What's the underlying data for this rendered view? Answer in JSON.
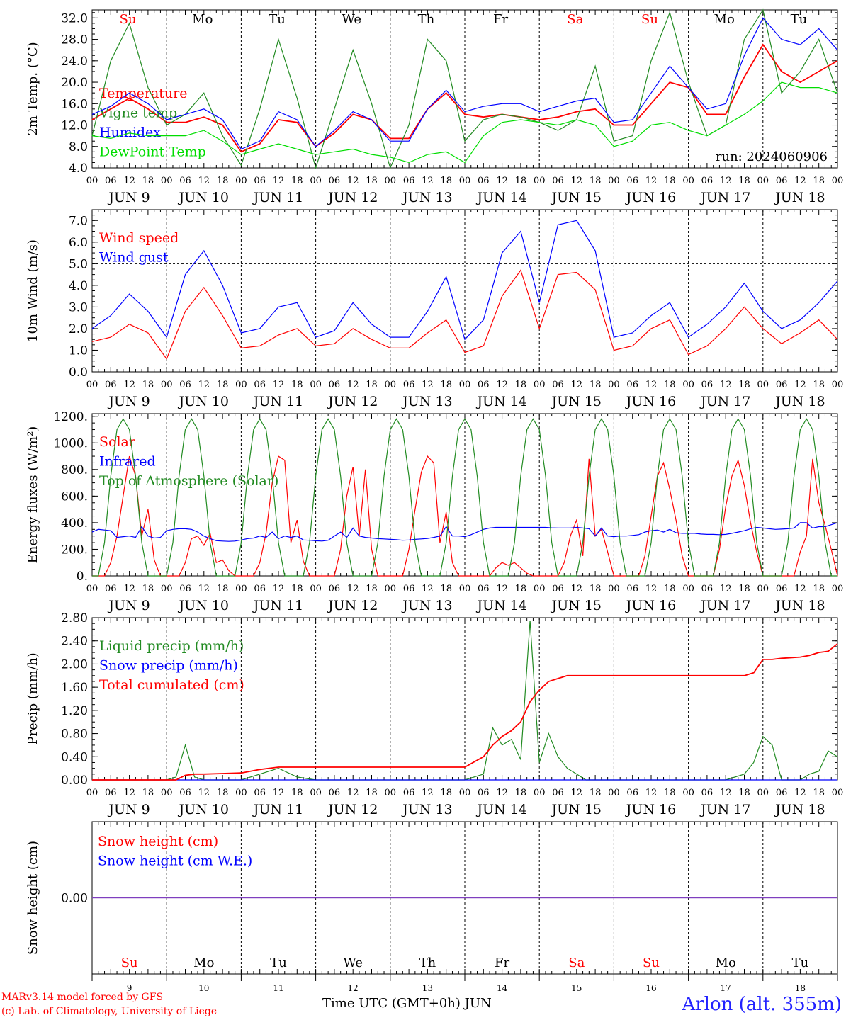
{
  "run_label": "run: 2024060906",
  "month_label": "JUN",
  "days": [
    "9",
    "10",
    "11",
    "12",
    "13",
    "14",
    "15",
    "16",
    "17",
    "18"
  ],
  "weekdays": [
    {
      "label": "Su",
      "color": "#ff0000"
    },
    {
      "label": "Mo",
      "color": "#000000"
    },
    {
      "label": "Tu",
      "color": "#000000"
    },
    {
      "label": "We",
      "color": "#000000"
    },
    {
      "label": "Th",
      "color": "#000000"
    },
    {
      "label": "Fr",
      "color": "#000000"
    },
    {
      "label": "Sa",
      "color": "#ff0000"
    },
    {
      "label": "Su",
      "color": "#ff0000"
    },
    {
      "label": "Mo",
      "color": "#000000"
    },
    {
      "label": "Tu",
      "color": "#000000"
    }
  ],
  "hour_ticks": [
    "00",
    "06",
    "12",
    "18"
  ],
  "footer": {
    "credit_line1": "MARv3.14 model forced by GFS",
    "credit_line2": "(c) Lab. of Climatology, University of Liege",
    "x_title": "Time UTC (GMT+0h)",
    "station": "Arlon (alt. 355m)"
  },
  "chart_data": [
    {
      "type": "line",
      "ylabel": "2m Temp. (°C)",
      "ylim": [
        4,
        33.5
      ],
      "yticks": [
        "4.0",
        "8.0",
        "12.0",
        "16.0",
        "20.0",
        "24.0",
        "28.0",
        "32.0"
      ],
      "x_unit": "hours since JUN 9 00 UTC",
      "x": [
        0,
        6,
        12,
        18,
        24,
        30,
        36,
        42,
        48,
        54,
        60,
        66,
        72,
        78,
        84,
        90,
        96,
        102,
        108,
        114,
        120,
        126,
        132,
        138,
        144,
        150,
        156,
        162,
        168,
        174,
        180,
        186,
        192,
        198,
        204,
        210,
        216,
        222,
        228,
        234,
        240
      ],
      "series": [
        {
          "name": "Temperature",
          "color": "#ff0000",
          "values": [
            13,
            15,
            17,
            15,
            12.5,
            12.5,
            13.5,
            12,
            7,
            8.5,
            13,
            12.5,
            8,
            10.5,
            14,
            13,
            9.5,
            9.5,
            15,
            18,
            14,
            13.5,
            14,
            13.5,
            13,
            13.5,
            14.5,
            15,
            12,
            12,
            16,
            20,
            19,
            14,
            14,
            21,
            27,
            22,
            20,
            22,
            24
          ]
        },
        {
          "name": "Vigne temp",
          "color": "#228b22",
          "values": [
            10,
            24,
            31,
            19,
            12,
            14,
            18,
            10,
            4.5,
            15,
            28,
            17,
            4,
            15,
            26,
            16,
            4,
            12,
            28,
            24,
            9,
            13,
            14,
            13.5,
            12.5,
            11,
            13,
            23,
            9,
            10,
            24,
            33,
            20,
            10,
            12,
            28,
            34,
            18,
            22,
            28,
            18
          ]
        },
        {
          "name": "Humidex",
          "color": "#0000ff",
          "values": [
            14,
            15.5,
            18,
            16,
            13,
            14,
            15,
            13,
            7.5,
            9,
            14.5,
            13,
            8,
            11,
            14.5,
            13,
            9,
            9,
            15,
            18.5,
            14.5,
            15.5,
            16,
            16,
            14.5,
            15.5,
            16.5,
            17,
            12.5,
            13,
            18,
            23,
            19,
            15,
            16,
            25,
            32,
            28,
            27,
            30,
            26
          ]
        },
        {
          "name": "DewPoint Temp",
          "color": "#00dd00",
          "values": [
            10,
            9.5,
            10.5,
            10,
            10,
            10,
            11,
            9,
            6.5,
            7.5,
            8.5,
            7.5,
            6.5,
            7,
            7.5,
            6.5,
            6,
            5,
            6.5,
            7,
            5,
            10,
            12.5,
            13,
            12.5,
            12,
            13,
            12,
            8,
            9,
            12,
            12.5,
            11,
            10,
            12,
            14,
            16.5,
            20,
            19,
            19,
            18
          ]
        }
      ]
    },
    {
      "type": "line",
      "ylabel": "10m Wind (m/s)",
      "ylim": [
        0,
        7.5
      ],
      "yticks": [
        "0.0",
        "1.0",
        "2.0",
        "3.0",
        "4.0",
        "5.0",
        "6.0",
        "7.0"
      ],
      "ref_line": 5.0,
      "x": [
        0,
        6,
        12,
        18,
        24,
        30,
        36,
        42,
        48,
        54,
        60,
        66,
        72,
        78,
        84,
        90,
        96,
        102,
        108,
        114,
        120,
        126,
        132,
        138,
        144,
        150,
        156,
        162,
        168,
        174,
        180,
        186,
        192,
        198,
        204,
        210,
        216,
        222,
        228,
        234,
        240
      ],
      "series": [
        {
          "name": "Wind speed",
          "color": "#ff0000",
          "values": [
            1.4,
            1.6,
            2.2,
            1.8,
            0.6,
            2.8,
            3.9,
            2.6,
            1.1,
            1.2,
            1.7,
            2.0,
            1.2,
            1.3,
            2.0,
            1.5,
            1.1,
            1.1,
            1.8,
            2.4,
            0.9,
            1.2,
            3.5,
            4.7,
            2.0,
            4.5,
            4.6,
            3.8,
            1.0,
            1.2,
            2.0,
            2.4,
            0.8,
            1.2,
            2.0,
            3.0,
            2.0,
            1.3,
            1.8,
            2.4,
            1.5
          ]
        },
        {
          "name": "Wind gust",
          "color": "#0000ff",
          "values": [
            2.0,
            2.6,
            3.6,
            2.8,
            1.6,
            4.5,
            5.6,
            4.0,
            1.8,
            2.0,
            3.0,
            3.2,
            1.6,
            1.9,
            3.2,
            2.2,
            1.6,
            1.6,
            2.8,
            4.4,
            1.5,
            2.4,
            5.5,
            6.5,
            3.2,
            6.8,
            7.0,
            5.6,
            1.6,
            1.8,
            2.6,
            3.2,
            1.6,
            2.2,
            3.0,
            4.1,
            2.8,
            2.0,
            2.4,
            3.2,
            4.2
          ]
        }
      ]
    },
    {
      "type": "line",
      "ylabel": "Energy fluxes (W/m²)",
      "ylim": [
        0,
        1220
      ],
      "yticks": [
        "0.",
        "200.",
        "400.",
        "600.",
        "800.",
        "1000.",
        "1200."
      ],
      "x_step_hours": 2,
      "series": [
        {
          "name": "Solar",
          "color": "#ff0000",
          "values": [
            0,
            0,
            0,
            100,
            300,
            600,
            900,
            750,
            300,
            500,
            120,
            0,
            0,
            0,
            0,
            100,
            280,
            300,
            230,
            320,
            100,
            120,
            40,
            0,
            0,
            0,
            0,
            100,
            320,
            700,
            900,
            870,
            250,
            420,
            110,
            0,
            0,
            0,
            0,
            0,
            200,
            600,
            820,
            300,
            800,
            200,
            0,
            0,
            0,
            0,
            0,
            200,
            500,
            780,
            900,
            850,
            250,
            480,
            100,
            0,
            0,
            0,
            0,
            0,
            0,
            60,
            100,
            80,
            100,
            60,
            20,
            0,
            0,
            0,
            0,
            0,
            100,
            300,
            420,
            150,
            880,
            300,
            350,
            180,
            0,
            0,
            0,
            0,
            0,
            150,
            450,
            750,
            850,
            650,
            420,
            150,
            0,
            0,
            0,
            0,
            0,
            200,
            520,
            750,
            870,
            680,
            400,
            180,
            0,
            0,
            0,
            0,
            0,
            0,
            180,
            300,
            880,
            550,
            380,
            200,
            0
          ]
        },
        {
          "name": "Infrared",
          "color": "#0000ff",
          "values": [
            330,
            350,
            345,
            340,
            290,
            295,
            300,
            290,
            370,
            300,
            285,
            290,
            340,
            350,
            355,
            355,
            350,
            330,
            300,
            280,
            265,
            262,
            260,
            262,
            270,
            280,
            285,
            300,
            290,
            330,
            280,
            300,
            290,
            300,
            270,
            268,
            264,
            262,
            268,
            300,
            330,
            290,
            360,
            300,
            290,
            285,
            280,
            278,
            275,
            272,
            268,
            270,
            275,
            278,
            282,
            290,
            300,
            370,
            300,
            300,
            295,
            310,
            330,
            350,
            360,
            365,
            365,
            365,
            365,
            365,
            365,
            365,
            365,
            365,
            362,
            360,
            360,
            360,
            365,
            360,
            355,
            300,
            360,
            300,
            295,
            300,
            300,
            305,
            310,
            330,
            340,
            345,
            330,
            350,
            325,
            320,
            320,
            320,
            315,
            312,
            312,
            310,
            312,
            320,
            330,
            340,
            355,
            365,
            360,
            355,
            350,
            352,
            355,
            360,
            400,
            400,
            360,
            370,
            370,
            385,
            400
          ]
        },
        {
          "name": "Top of Atmosphere (Solar)",
          "color": "#228b22",
          "values": [
            0,
            0,
            250,
            750,
            1100,
            1180,
            1100,
            750,
            250,
            0,
            0,
            0,
            0,
            250,
            750,
            1100,
            1180,
            1100,
            750,
            250,
            0,
            0,
            0,
            0,
            250,
            750,
            1100,
            1180,
            1100,
            750,
            250,
            0,
            0,
            0,
            0,
            250,
            750,
            1100,
            1180,
            1100,
            750,
            250,
            0,
            0,
            0,
            0,
            250,
            750,
            1100,
            1180,
            1100,
            750,
            250,
            0,
            0,
            0,
            0,
            250,
            750,
            1100,
            1180,
            1100,
            750,
            250,
            0,
            0,
            0,
            0,
            250,
            750,
            1100,
            1180,
            1100,
            750,
            250,
            0,
            0,
            0,
            0,
            250,
            750,
            1100,
            1180,
            1100,
            750,
            250,
            0,
            0,
            0,
            0,
            250,
            750,
            1100,
            1180,
            1100,
            750,
            250,
            0,
            0,
            0,
            0,
            250,
            750,
            1100,
            1180,
            1100,
            750,
            250,
            0,
            0,
            0,
            0,
            250,
            750,
            1100,
            1180,
            1100,
            750,
            250,
            0,
            0
          ]
        }
      ]
    },
    {
      "type": "line",
      "ylabel": "Precip (mm/h)",
      "ylim": [
        0,
        2.8
      ],
      "yticks": [
        "0.00",
        "0.40",
        "0.80",
        "1.20",
        "1.60",
        "2.00",
        "2.40",
        "2.80"
      ],
      "x": [
        0,
        6,
        12,
        18,
        24,
        27,
        30,
        33,
        36,
        42,
        48,
        54,
        60,
        66,
        72,
        78,
        84,
        90,
        96,
        102,
        108,
        114,
        120,
        126,
        129,
        132,
        135,
        138,
        141,
        144,
        147,
        150,
        153,
        156,
        159,
        162,
        165,
        168,
        174,
        180,
        186,
        192,
        198,
        204,
        210,
        213,
        216,
        219,
        222,
        228,
        231,
        234,
        237,
        240
      ],
      "series": [
        {
          "name": "Liquid precip (mm/h)",
          "color": "#228b22",
          "values": [
            0,
            0,
            0,
            0,
            0,
            0.05,
            0.6,
            0.05,
            0,
            0,
            0,
            0.1,
            0.2,
            0.05,
            0,
            0,
            0,
            0,
            0,
            0,
            0,
            0,
            0,
            0.1,
            0.9,
            0.6,
            0.7,
            0.35,
            2.75,
            0.3,
            0.8,
            0.4,
            0.2,
            0.1,
            0,
            0,
            0,
            0,
            0,
            0,
            0,
            0,
            0,
            0,
            0.1,
            0.3,
            0.75,
            0.6,
            0,
            0,
            0.1,
            0.15,
            0.5,
            0.4
          ]
        },
        {
          "name": "Snow precip (mm/h)",
          "color": "#0000ff",
          "values": [
            0,
            0,
            0,
            0,
            0,
            0,
            0,
            0,
            0,
            0,
            0,
            0,
            0,
            0,
            0,
            0,
            0,
            0,
            0,
            0,
            0,
            0,
            0,
            0,
            0,
            0,
            0,
            0,
            0,
            0,
            0,
            0,
            0,
            0,
            0,
            0,
            0,
            0,
            0,
            0,
            0,
            0,
            0,
            0,
            0,
            0,
            0,
            0,
            0,
            0,
            0,
            0,
            0,
            0
          ]
        },
        {
          "name": "Total cumulated (cm)",
          "color": "#ff0000",
          "values": [
            0,
            0,
            0,
            0,
            0,
            0,
            0.08,
            0.1,
            0.1,
            0.11,
            0.12,
            0.18,
            0.22,
            0.22,
            0.22,
            0.22,
            0.22,
            0.22,
            0.22,
            0.22,
            0.22,
            0.22,
            0.22,
            0.4,
            0.6,
            0.75,
            0.85,
            1.0,
            1.35,
            1.55,
            1.7,
            1.75,
            1.8,
            1.8,
            1.8,
            1.8,
            1.8,
            1.8,
            1.8,
            1.8,
            1.8,
            1.8,
            1.8,
            1.8,
            1.8,
            1.85,
            2.08,
            2.08,
            2.1,
            2.12,
            2.15,
            2.2,
            2.22,
            2.35
          ]
        }
      ]
    },
    {
      "type": "line",
      "ylabel": "Snow height (cm)",
      "yticks": [
        "0.00"
      ],
      "x": [
        0,
        240
      ],
      "series": [
        {
          "name": "Snow height (cm)",
          "color": "#ff0000",
          "values": [
            0,
            0
          ]
        },
        {
          "name": "Snow height (cm W.E.)",
          "color": "#0000ff",
          "values": [
            0,
            0
          ]
        }
      ]
    }
  ]
}
